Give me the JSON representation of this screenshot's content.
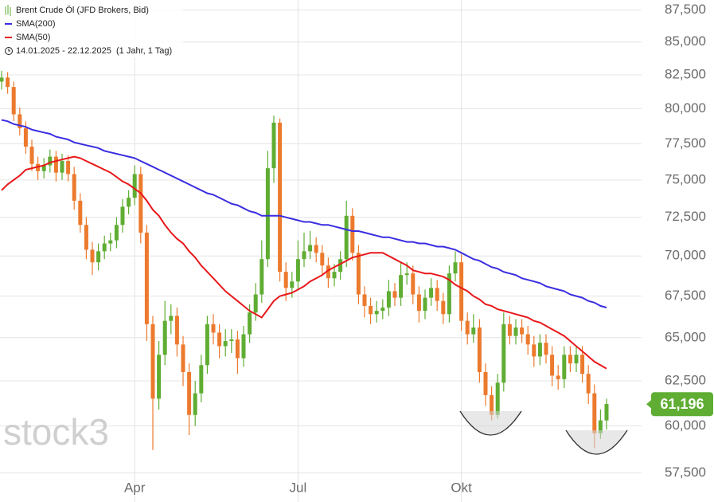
{
  "chart_data": {
    "type": "candlestick",
    "title": "Brent Crude Öl (JFD Brokers, Bid)",
    "period": "14.01.2025 - 22.12.2025  (1 Jahr, 1 Tag)",
    "watermark": "stock3",
    "categories": [
      null,
      null,
      null,
      null,
      null,
      null,
      null,
      null,
      null,
      null,
      null,
      null,
      null,
      null,
      null,
      null,
      null,
      null,
      null,
      null,
      null,
      null,
      "Apr",
      null,
      null,
      null,
      null,
      null,
      null,
      null,
      null,
      null,
      null,
      null,
      null,
      null,
      null,
      null,
      null,
      null,
      null,
      null,
      null,
      null,
      null,
      null,
      null,
      null,
      null,
      "Jul",
      null,
      null,
      null,
      null,
      null,
      null,
      null,
      null,
      null,
      null,
      null,
      null,
      null,
      null,
      null,
      null,
      null,
      null,
      null,
      null,
      null,
      null,
      null,
      null,
      null,
      null,
      "Okt",
      null,
      null,
      null,
      null,
      null,
      null,
      null,
      null,
      null,
      null,
      null,
      null,
      null,
      null,
      null,
      null,
      null,
      null,
      null,
      null,
      null,
      null,
      null,
      null
    ],
    "open": [
      82.0,
      82.3,
      81.6,
      79.6,
      78.6,
      77.3,
      76.1,
      75.6,
      76.0,
      76.6,
      75.5,
      76.3,
      75.4,
      73.6,
      72.0,
      70.4,
      69.6,
      70.3,
      70.8,
      71.0,
      72.0,
      73.2,
      73.8,
      75.4,
      71.5,
      65.8,
      61.5,
      64.0,
      66.0,
      66.3,
      64.6,
      63.0,
      60.6,
      61.8,
      63.4,
      65.8,
      65.3,
      64.5,
      64.8,
      64.9,
      63.8,
      65.2,
      66.5,
      67.6,
      69.8,
      75.8,
      79.0,
      69.0,
      68.0,
      68.4,
      69.8,
      70.3,
      70.7,
      70.2,
      69.4,
      68.6,
      69.0,
      69.8,
      72.6,
      70.2,
      67.6,
      66.9,
      66.4,
      66.6,
      66.8,
      67.8,
      67.4,
      68.8,
      68.9,
      67.6,
      66.6,
      67.4,
      68.0,
      67.2,
      66.4,
      68.9,
      69.6,
      66.0,
      65.2,
      65.6,
      63.0,
      61.7,
      60.6,
      62.4,
      65.8,
      65.1,
      65.6,
      65.2,
      64.6,
      63.9,
      64.7,
      64.0,
      62.8,
      62.6,
      64.0,
      63.5,
      64.0,
      62.9,
      61.8,
      59.6,
      60.3
    ],
    "high": [
      82.8,
      82.7,
      82.0,
      80.1,
      79.1,
      77.8,
      76.6,
      76.5,
      77.1,
      77.0,
      76.8,
      76.7,
      75.9,
      74.1,
      72.5,
      70.9,
      70.8,
      71.3,
      71.5,
      72.5,
      73.7,
      74.3,
      76.0,
      75.9,
      72.0,
      66.3,
      64.8,
      67.2,
      67.0,
      66.8,
      65.1,
      63.5,
      62.5,
      64.0,
      66.3,
      66.4,
      65.8,
      65.5,
      65.5,
      65.4,
      65.7,
      67.0,
      68.3,
      71.0,
      77.0,
      79.5,
      79.3,
      69.6,
      69.0,
      71.0,
      71.5,
      71.6,
      71.2,
      70.7,
      69.9,
      69.5,
      70.3,
      73.6,
      73.1,
      70.7,
      68.1,
      67.4,
      67.2,
      67.3,
      68.5,
      68.3,
      69.6,
      69.6,
      69.4,
      68.1,
      67.9,
      68.6,
      68.5,
      67.7,
      69.4,
      70.3,
      70.1,
      66.5,
      66.4,
      66.1,
      63.5,
      62.2,
      62.9,
      66.5,
      66.3,
      66.1,
      66.1,
      65.7,
      65.1,
      65.2,
      65.2,
      64.5,
      63.4,
      64.5,
      64.5,
      64.5,
      64.5,
      63.4,
      62.3,
      60.9,
      61.5
    ],
    "low": [
      81.4,
      81.1,
      79.1,
      78.1,
      76.8,
      75.6,
      75.0,
      75.1,
      75.5,
      74.9,
      75.0,
      74.9,
      73.0,
      71.5,
      69.8,
      68.8,
      69.1,
      69.8,
      70.3,
      70.5,
      71.5,
      72.7,
      73.3,
      70.8,
      64.8,
      58.7,
      60.9,
      63.4,
      65.2,
      63.9,
      62.2,
      59.5,
      60.0,
      61.3,
      62.9,
      64.6,
      63.8,
      63.9,
      64.1,
      62.9,
      63.3,
      64.7,
      66.0,
      67.1,
      69.3,
      74.8,
      68.4,
      67.2,
      67.4,
      67.9,
      69.3,
      69.8,
      69.6,
      68.8,
      68.0,
      68.1,
      68.5,
      69.3,
      69.7,
      67.0,
      66.2,
      65.8,
      65.9,
      66.1,
      66.3,
      66.9,
      66.9,
      68.2,
      67.0,
      65.9,
      66.1,
      66.9,
      66.6,
      65.8,
      65.9,
      68.4,
      65.4,
      64.6,
      64.7,
      62.4,
      61.1,
      60.3,
      60.4,
      61.9,
      64.6,
      64.6,
      64.7,
      64.0,
      63.3,
      63.4,
      63.5,
      62.2,
      62.0,
      62.1,
      63.0,
      63.0,
      62.4,
      61.2,
      58.8,
      59.3,
      59.8
    ],
    "close": [
      82.3,
      81.6,
      79.6,
      78.6,
      77.3,
      76.1,
      75.6,
      76.0,
      76.6,
      75.5,
      76.3,
      75.4,
      73.6,
      72.0,
      70.4,
      69.6,
      70.3,
      70.8,
      71.0,
      72.0,
      73.2,
      73.8,
      75.4,
      71.5,
      65.8,
      61.5,
      64.0,
      66.0,
      66.3,
      64.6,
      63.0,
      60.6,
      61.8,
      63.4,
      65.8,
      65.3,
      64.5,
      64.8,
      64.9,
      63.8,
      65.2,
      66.5,
      67.6,
      69.8,
      75.8,
      79.0,
      69.0,
      68.0,
      68.4,
      69.8,
      70.3,
      70.7,
      70.2,
      69.4,
      68.6,
      69.0,
      69.8,
      72.6,
      70.2,
      67.6,
      66.9,
      66.4,
      66.6,
      66.8,
      67.8,
      67.4,
      68.8,
      68.9,
      67.6,
      66.6,
      67.4,
      68.0,
      67.2,
      66.4,
      68.9,
      69.6,
      66.0,
      65.2,
      65.6,
      63.0,
      61.7,
      60.6,
      62.4,
      65.8,
      65.1,
      65.6,
      65.2,
      64.6,
      63.9,
      64.7,
      64.0,
      62.8,
      62.6,
      64.0,
      63.5,
      64.0,
      62.9,
      61.8,
      59.6,
      60.3,
      61.2
    ],
    "up_color": "#5fad33",
    "down_color": "#ec7a2e",
    "overlays": [
      {
        "name": "SMA(200)",
        "color": "#3b2ee0",
        "values": [
          79.2,
          79.1,
          78.9,
          78.8,
          78.7,
          78.5,
          78.4,
          78.3,
          78.2,
          78.0,
          77.9,
          77.8,
          77.6,
          77.5,
          77.4,
          77.3,
          77.2,
          77.0,
          76.9,
          76.8,
          76.7,
          76.6,
          76.5,
          76.3,
          76.1,
          75.9,
          75.7,
          75.5,
          75.3,
          75.1,
          74.9,
          74.7,
          74.5,
          74.3,
          74.1,
          74.0,
          73.8,
          73.6,
          73.4,
          73.3,
          73.1,
          72.9,
          72.8,
          72.6,
          72.6,
          72.6,
          72.6,
          72.5,
          72.4,
          72.3,
          72.2,
          72.2,
          72.1,
          72.0,
          72.0,
          71.9,
          71.8,
          71.7,
          71.6,
          71.6,
          71.5,
          71.4,
          71.3,
          71.2,
          71.2,
          71.1,
          71.0,
          70.9,
          70.9,
          70.8,
          70.8,
          70.7,
          70.6,
          70.6,
          70.5,
          70.4,
          70.2,
          70.0,
          69.8,
          69.7,
          69.5,
          69.3,
          69.2,
          69.0,
          68.9,
          68.8,
          68.6,
          68.5,
          68.4,
          68.3,
          68.1,
          68.0,
          67.9,
          67.8,
          67.6,
          67.5,
          67.4,
          67.2,
          67.1,
          66.9,
          66.8
        ]
      },
      {
        "name": "SMA(50)",
        "color": "#e8181b",
        "values": [
          74.3,
          74.7,
          75.0,
          75.3,
          75.7,
          75.8,
          75.9,
          76.0,
          76.2,
          76.3,
          76.4,
          76.5,
          76.6,
          76.5,
          76.3,
          76.1,
          75.9,
          75.7,
          75.5,
          75.2,
          74.9,
          74.7,
          74.4,
          74.1,
          73.6,
          73.0,
          72.6,
          72.0,
          71.5,
          71.1,
          70.8,
          70.3,
          69.9,
          69.4,
          69.0,
          68.6,
          68.2,
          67.8,
          67.5,
          67.2,
          66.9,
          66.6,
          66.4,
          66.2,
          66.7,
          67.2,
          67.5,
          67.6,
          67.7,
          67.9,
          68.1,
          68.4,
          68.6,
          68.8,
          69.1,
          69.3,
          69.5,
          69.7,
          69.9,
          70.0,
          70.1,
          70.2,
          70.2,
          70.2,
          70.0,
          69.8,
          69.6,
          69.4,
          69.1,
          69.0,
          68.9,
          68.9,
          68.8,
          68.7,
          68.5,
          68.2,
          68.0,
          67.8,
          67.5,
          67.3,
          67.0,
          66.9,
          66.7,
          66.6,
          66.5,
          66.4,
          66.3,
          66.2,
          66.0,
          65.9,
          65.7,
          65.5,
          65.3,
          65.1,
          64.8,
          64.5,
          64.2,
          63.9,
          63.6,
          63.4,
          63.2
        ]
      }
    ],
    "last_price": {
      "value": 61.196,
      "label": "61,196"
    },
    "last_color": "#5fad33",
    "ylim": [
      56.2,
      88.3
    ],
    "log_scale": true,
    "grid": true,
    "yticks": [
      {
        "value": 57.5,
        "label": "57,500"
      },
      {
        "value": 60,
        "label": "60,000"
      },
      {
        "value": 62.5,
        "label": "62,500"
      },
      {
        "value": 65,
        "label": "65,000"
      },
      {
        "value": 67.5,
        "label": "67,500"
      },
      {
        "value": 70,
        "label": "70,000"
      },
      {
        "value": 72.5,
        "label": "72,500"
      },
      {
        "value": 75,
        "label": "75,000"
      },
      {
        "value": 77.5,
        "label": "77,500"
      },
      {
        "value": 80,
        "label": "80,000"
      },
      {
        "value": 82.5,
        "label": "82,500"
      },
      {
        "value": 85,
        "label": "85,000"
      },
      {
        "value": 87.5,
        "label": "87,500"
      }
    ]
  }
}
